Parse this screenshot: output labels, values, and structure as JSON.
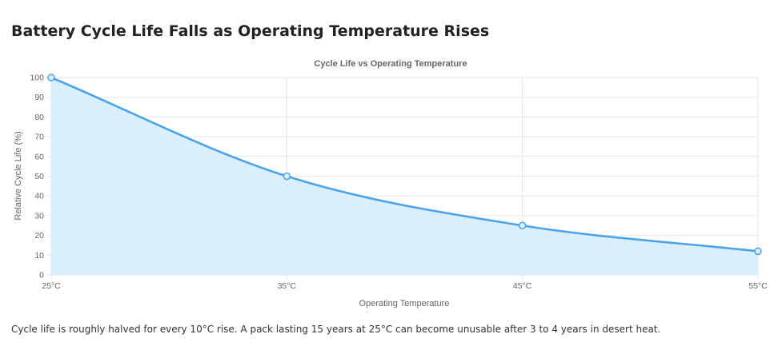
{
  "page": {
    "title": "Battery Cycle Life Falls as Operating Temperature Rises",
    "footnote": "Cycle life is roughly halved for every 10°C rise. A pack lasting 15 years at 25°C can become unusable after 3 to 4 years in desert heat."
  },
  "chart_data": {
    "type": "line",
    "title": "Cycle Life vs Operating Temperature",
    "xlabel": "Operating Temperature",
    "ylabel": "Relative Cycle Life (%)",
    "categories": [
      "25°C",
      "35°C",
      "45°C",
      "55°C"
    ],
    "series": [
      {
        "values": [
          100,
          50,
          25,
          12
        ],
        "color": "#4ba3e8",
        "fill": "#dbeefb"
      }
    ],
    "ylim": [
      0,
      100
    ],
    "yticks": [
      0,
      10,
      20,
      30,
      40,
      50,
      60,
      70,
      80,
      90,
      100
    ],
    "grid": true,
    "legend": "none",
    "area_filled": true
  }
}
